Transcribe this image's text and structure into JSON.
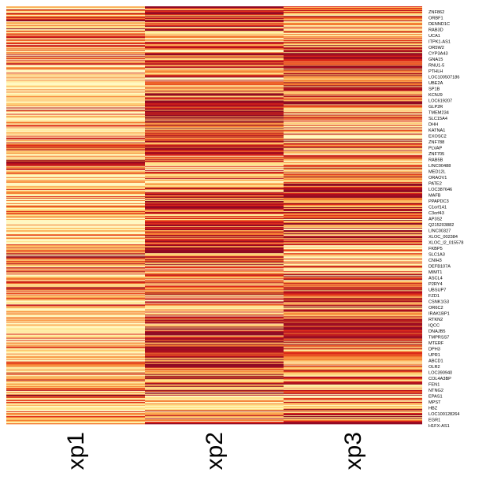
{
  "chart_data": {
    "type": "heatmap",
    "columns": [
      "xp1",
      "xp2",
      "xp3"
    ],
    "row_labels": [
      "ZNF862",
      "ORBF1",
      "DENND1C",
      "RAB3D",
      "UCA1",
      "ITPK1-AS1",
      "OR5W2",
      "CYP3A43",
      "GNA15",
      "RNU1-5",
      "PTHLH",
      "LOC100507186",
      "UBE2A",
      "SP1B",
      "KCNJ9",
      "LOC619207",
      "GLP2R",
      "TMEM234",
      "SLC15A4",
      "DHH",
      "KATNA1",
      "EXOSC2",
      "ZNF788",
      "PLVAP",
      "ZNF705",
      "RAB5B",
      "LINC00488",
      "MED12L",
      "ORAOV1",
      "PATE2",
      "LOC387646",
      "MAFB",
      "PPAPDC3",
      "C1orf141",
      "C3orf43",
      "AP3S2",
      "Q215203882",
      "LINC00327",
      "XLOC_002384",
      "XLOC_l2_015578",
      "FKBP5",
      "SLC1A3",
      "CNIH3",
      "DEFB107A",
      "MIMT1",
      "ASCL4",
      "P2RY4",
      "UBSUP7",
      "FZD1",
      "CSNK1G3",
      "OR6C2",
      "IRAK1BP1",
      "RTKN2",
      "IQCC",
      "DNAJB5",
      "TMPRSS7",
      "MTERF",
      "DPH3",
      "UPR1",
      "ABCD1",
      "OLR2",
      "LOC390940",
      "COL4A3BP",
      "FEN1",
      "NTNG2",
      "EPAS1",
      "MPST",
      "HBZ",
      "LOC100128264",
      "EGR1",
      "H1FX-AS1"
    ],
    "value_range": [
      0,
      1
    ],
    "colormap": [
      "#fff8c2",
      "#ffe28a",
      "#fcb25c",
      "#f47a30",
      "#dc2b1a",
      "#b50f1f",
      "#8f0a24"
    ],
    "row_count": 528,
    "seed": 20240611
  }
}
